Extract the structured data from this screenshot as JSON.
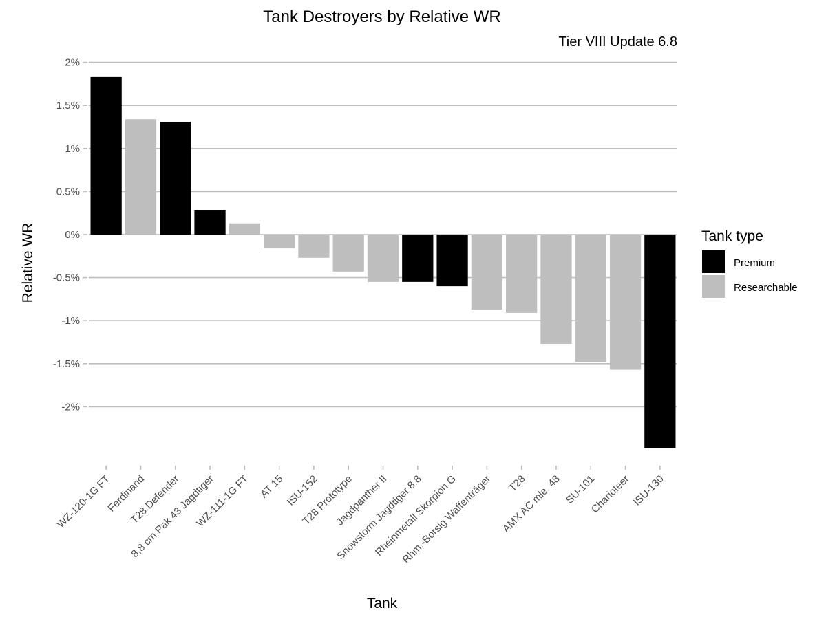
{
  "chart_data": {
    "type": "bar",
    "title": "Tank Destroyers by Relative WR",
    "subtitle": "Tier VIII Update 6.8",
    "xlabel": "Tank",
    "ylabel": "Relative WR",
    "ylim": [
      -2.5,
      2.0
    ],
    "yticks": [
      2,
      1.5,
      1,
      0.5,
      0,
      -0.5,
      -1,
      -1.5,
      -2
    ],
    "ytick_labels": [
      "2%",
      "1.5%",
      "1%",
      "0.5%",
      "0%",
      "-0.5%",
      "-1%",
      "-1.5%",
      "-2%"
    ],
    "grid": true,
    "legend_position": "right",
    "legend": {
      "title": "Tank type",
      "entries": [
        {
          "name": "Premium",
          "color": "#000000"
        },
        {
          "name": "Researchable",
          "color": "#bebebe"
        }
      ]
    },
    "categories": [
      "WZ-120-1G FT",
      "Ferdinand",
      "T28 Defender",
      "8,8 cm Pak 43 Jagdtiger",
      "WZ-111-1G FT",
      "AT 15",
      "ISU-152",
      "T28 Prototype",
      "Jagdpanther II",
      "Snowstorm Jagdtiger 8.8",
      "Rheinmetall Skorpion G",
      "Rhm.-Borsig Waffenträger",
      "T28",
      "AMX AC mle. 48",
      "SU-101",
      "Charioteer",
      "ISU-130"
    ],
    "values": [
      1.83,
      1.34,
      1.31,
      0.28,
      0.13,
      -0.16,
      -0.27,
      -0.43,
      -0.55,
      -0.55,
      -0.6,
      -0.87,
      -0.91,
      -1.27,
      -1.48,
      -1.57,
      -2.48
    ],
    "types": [
      "Premium",
      "Researchable",
      "Premium",
      "Premium",
      "Researchable",
      "Researchable",
      "Researchable",
      "Researchable",
      "Researchable",
      "Premium",
      "Premium",
      "Researchable",
      "Researchable",
      "Researchable",
      "Researchable",
      "Researchable",
      "Premium"
    ]
  }
}
